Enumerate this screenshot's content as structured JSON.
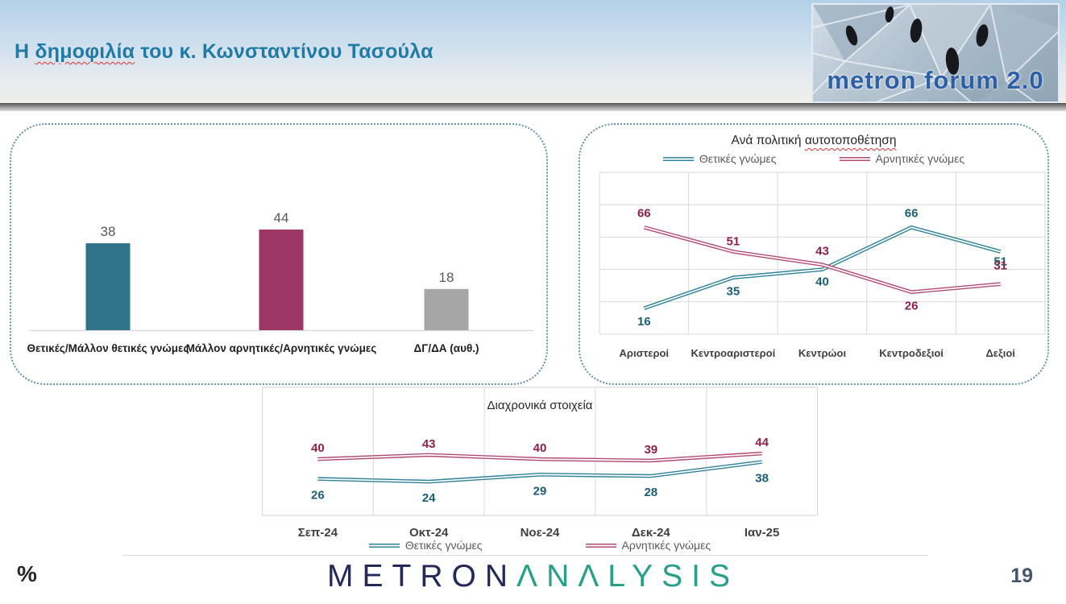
{
  "header": {
    "title": {
      "prefix": "Η ",
      "underlined_word": "δημοφιλία",
      "suffix": " του κ. Κωνσταντίνου Τασούλα"
    },
    "logo_text": "metron forum 2.0"
  },
  "footer": {
    "percent": "%",
    "brand_part1": "METRON",
    "brand_part2": "ΛNΛLYSIS",
    "page": "19"
  },
  "colors": {
    "positive_bar": "#2F7489",
    "negative_bar": "#9C3664",
    "neutral_bar": "#A6A6A6",
    "positive_line": "#2E8297",
    "negative_line": "#B34A72",
    "positive_label": "#1A5E74",
    "negative_label": "#8E2045",
    "axis_text": "#404040",
    "grid": "#D9D9D9",
    "title_teal": "#1F7BA6"
  },
  "chart_data": [
    {
      "type": "bar",
      "title": "",
      "categories": [
        "Θετικές/Μάλλον θετικές γνώμες",
        "Μάλλον αρνητικές/Αρνητικές γνώμες",
        "ΔΓ/ΔΑ (αυθ.)"
      ],
      "values": [
        38,
        44,
        18
      ],
      "bar_colors": [
        "#2F7489",
        "#9C3664",
        "#A6A6A6"
      ],
      "ylim": [
        0,
        75
      ],
      "grid": "none",
      "data_labels": true
    },
    {
      "type": "line",
      "title": "Ανά πολιτική αυτοτοποθέτηση",
      "title_parts": {
        "prefix": "Ανά πολιτική ",
        "underlined": "αυτοτοποθέτηση"
      },
      "categories": [
        "Αριστεροί",
        "Κεντροαριστεροί",
        "Κεντρώοι",
        "Κεντροδεξιοί",
        "Δεξιοί"
      ],
      "series": [
        {
          "name": "Θετικές γνώμες",
          "values": [
            16,
            35,
            40,
            66,
            51
          ],
          "color": "#2E8297",
          "label_color": "#1A5E74"
        },
        {
          "name": "Αρνητικές γνώμες",
          "values": [
            66,
            51,
            43,
            26,
            31
          ],
          "color": "#B34A72",
          "label_color": "#8E2045"
        }
      ],
      "ylim": [
        0,
        100
      ],
      "grid": "full",
      "legend_position": "top",
      "data_labels": true
    },
    {
      "type": "line",
      "title": "Διαχρονικά στοιχεία",
      "categories": [
        "Σεπ-24",
        "Οκτ-24",
        "Νοε-24",
        "Δεκ-24",
        "Ιαν-25"
      ],
      "series": [
        {
          "name": "Θετικές γνώμες",
          "values": [
            26,
            24,
            29,
            28,
            38
          ],
          "color": "#2E8297",
          "label_color": "#1A5E74"
        },
        {
          "name": "Αρνητικές γνώμες",
          "values": [
            40,
            43,
            40,
            39,
            44
          ],
          "color": "#B34A72",
          "label_color": "#8E2045"
        }
      ],
      "ylim": [
        0,
        91
      ],
      "grid": "vertical-only",
      "legend_position": "bottom",
      "data_labels": true
    }
  ]
}
